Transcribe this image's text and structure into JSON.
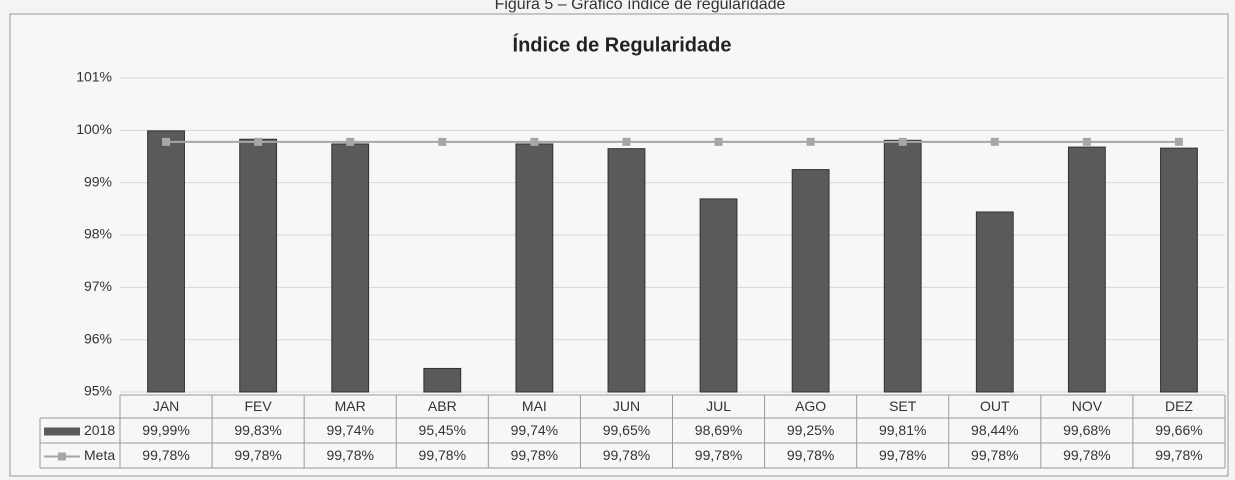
{
  "caption": "Figura 5 – Gráfico índice de regularidade",
  "chart_data": {
    "type": "bar",
    "title": "Índice de Regularidade",
    "categories": [
      "JAN",
      "FEV",
      "MAR",
      "ABR",
      "MAI",
      "JUN",
      "JUL",
      "AGO",
      "SET",
      "OUT",
      "NOV",
      "DEZ"
    ],
    "series": [
      {
        "name": "2018",
        "type": "bar",
        "color": "#5a5a5a",
        "values": [
          99.99,
          99.83,
          99.74,
          95.45,
          99.74,
          99.65,
          98.69,
          99.25,
          99.81,
          98.44,
          99.68,
          99.66
        ],
        "value_labels": [
          "99,99%",
          "99,83%",
          "99,74%",
          "95,45%",
          "99,74%",
          "99,65%",
          "98,69%",
          "99,25%",
          "99,81%",
          "98,44%",
          "99,68%",
          "99,66%"
        ]
      },
      {
        "name": "Meta",
        "type": "line",
        "color": "#a6a6a6",
        "values": [
          99.78,
          99.78,
          99.78,
          99.78,
          99.78,
          99.78,
          99.78,
          99.78,
          99.78,
          99.78,
          99.78,
          99.78
        ],
        "value_labels": [
          "99,78%",
          "99,78%",
          "99,78%",
          "99,78%",
          "99,78%",
          "99,78%",
          "99,78%",
          "99,78%",
          "99,78%",
          "99,78%",
          "99,78%",
          "99,78%"
        ]
      }
    ],
    "ylim": [
      95,
      101
    ],
    "yticks": [
      {
        "value": 95,
        "label": "95%"
      },
      {
        "value": 96,
        "label": "96%"
      },
      {
        "value": 97,
        "label": "97%"
      },
      {
        "value": 98,
        "label": "98%"
      },
      {
        "value": 99,
        "label": "99%"
      },
      {
        "value": 100,
        "label": "100%"
      },
      {
        "value": 101,
        "label": "101%"
      }
    ],
    "grid": true
  }
}
